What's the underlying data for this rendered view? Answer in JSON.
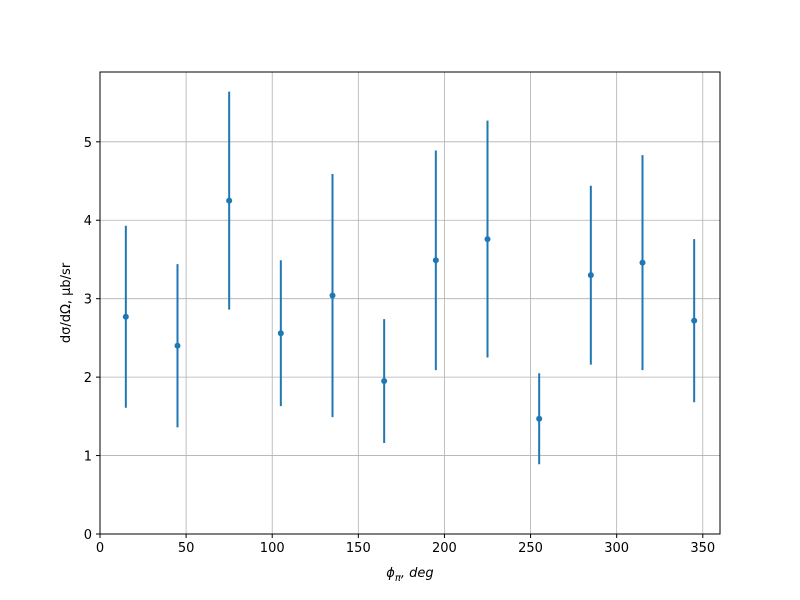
{
  "chart_data": {
    "type": "errorbar",
    "xlabel": [
      "ϕ",
      "π",
      ", deg"
    ],
    "ylabel": "dσ/dΩ, μb/sr",
    "x": [
      15,
      45,
      75,
      105,
      135,
      165,
      195,
      225,
      255,
      285,
      315,
      345
    ],
    "series": [
      {
        "color": "#1f77b4",
        "values": [
          2.77,
          2.4,
          4.25,
          2.56,
          3.04,
          1.95,
          3.49,
          3.76,
          1.47,
          3.3,
          3.46,
          2.72
        ],
        "errors": [
          1.16,
          1.04,
          1.39,
          0.93,
          1.55,
          0.79,
          1.4,
          1.51,
          0.58,
          1.14,
          1.37,
          1.04
        ]
      }
    ],
    "xlim": [
      0,
      360
    ],
    "xticks": [
      0,
      50,
      100,
      150,
      200,
      250,
      300,
      350
    ],
    "ylim": [
      0,
      5.89
    ],
    "yticks": [
      0,
      1,
      2,
      3,
      4,
      5
    ],
    "grid": true
  }
}
